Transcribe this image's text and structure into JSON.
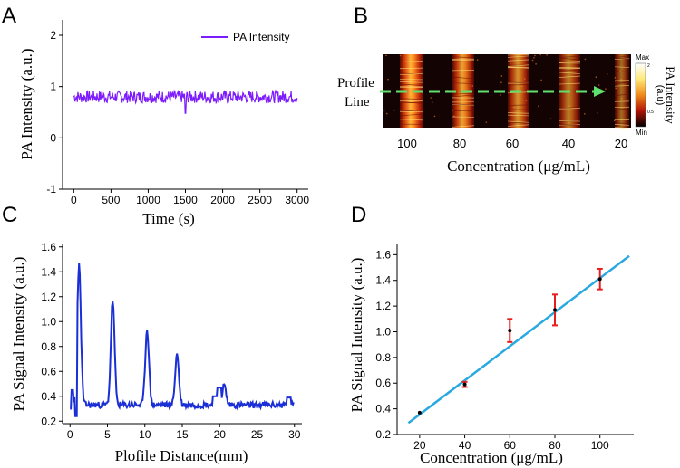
{
  "panels": {
    "a": "A",
    "b": "B",
    "c": "C",
    "d": "D"
  },
  "colors": {
    "purple": "#7d1bff",
    "blue": "#1b2fd6",
    "cyan": "#2aa9e0",
    "red": "#e81e1e",
    "green": "#5fe06e"
  },
  "chart_data": [
    {
      "type": "line",
      "panel": "A",
      "xlabel": "Time (s)",
      "ylabel": "PA Intensity (a.u.)",
      "xlim": [
        -150,
        3150
      ],
      "ylim": [
        -1,
        2.3
      ],
      "xticks": [
        "0",
        "500",
        "1000",
        "1500",
        "2000",
        "2500",
        "3000"
      ],
      "yticks": [
        "-1",
        "0",
        "1",
        "2"
      ],
      "series": [
        {
          "name": "PA Intensity",
          "mean": 0.8,
          "noise": 0.12,
          "min": 0.48,
          "max": 1.05,
          "x_range": [
            0,
            3000
          ]
        }
      ]
    },
    {
      "type": "heatmap",
      "panel": "B",
      "xlabel": "Concentration (μg/mL)",
      "tick_labels": [
        "100",
        "80",
        "60",
        "40",
        "20"
      ],
      "annotation": [
        "Profile",
        "Line"
      ],
      "colorbar": {
        "title": "PA Intensity",
        "unit": "(a.u)",
        "max": "Max",
        "min": "Min",
        "max_val": "2",
        "mid_val": "0.5"
      }
    },
    {
      "type": "line",
      "panel": "C",
      "xlabel": "Plofile Distance(mm)",
      "ylabel": "PA Signal Intensity (a.u.)",
      "xlim": [
        -1,
        31
      ],
      "ylim": [
        0.18,
        1.62
      ],
      "xticks": [
        "0",
        "5",
        "10",
        "15",
        "20",
        "25",
        "30"
      ],
      "yticks": [
        "0.2",
        "0.4",
        "0.6",
        "0.8",
        "1.0",
        "1.2",
        "1.4",
        "1.6"
      ],
      "peaks": [
        {
          "x": 1.2,
          "y": 1.45
        },
        {
          "x": 5.7,
          "y": 1.17
        },
        {
          "x": 10.3,
          "y": 0.94
        },
        {
          "x": 14.3,
          "y": 0.74
        },
        {
          "x": 20.6,
          "y": 0.49
        }
      ],
      "baseline": 0.33
    },
    {
      "type": "scatter",
      "panel": "D",
      "xlabel": "Concentration (μg/mL)",
      "ylabel": "PA Signal Intensity (a.u.)",
      "xlim": [
        10,
        115
      ],
      "ylim": [
        0.2,
        1.68
      ],
      "xticks": [
        "20",
        "40",
        "60",
        "80",
        "100"
      ],
      "yticks": [
        "0.2",
        "0.4",
        "0.6",
        "0.8",
        "1.0",
        "1.2",
        "1.4",
        "1.6"
      ],
      "points": [
        {
          "x": 20,
          "y": 0.37,
          "err": 0.0
        },
        {
          "x": 40,
          "y": 0.59,
          "err": 0.02
        },
        {
          "x": 60,
          "y": 1.01,
          "err": 0.09
        },
        {
          "x": 80,
          "y": 1.17,
          "err": 0.12
        },
        {
          "x": 100,
          "y": 1.41,
          "err": 0.08
        }
      ],
      "fit": {
        "x0": 15,
        "y0": 0.29,
        "x1": 113,
        "y1": 1.59
      }
    }
  ]
}
